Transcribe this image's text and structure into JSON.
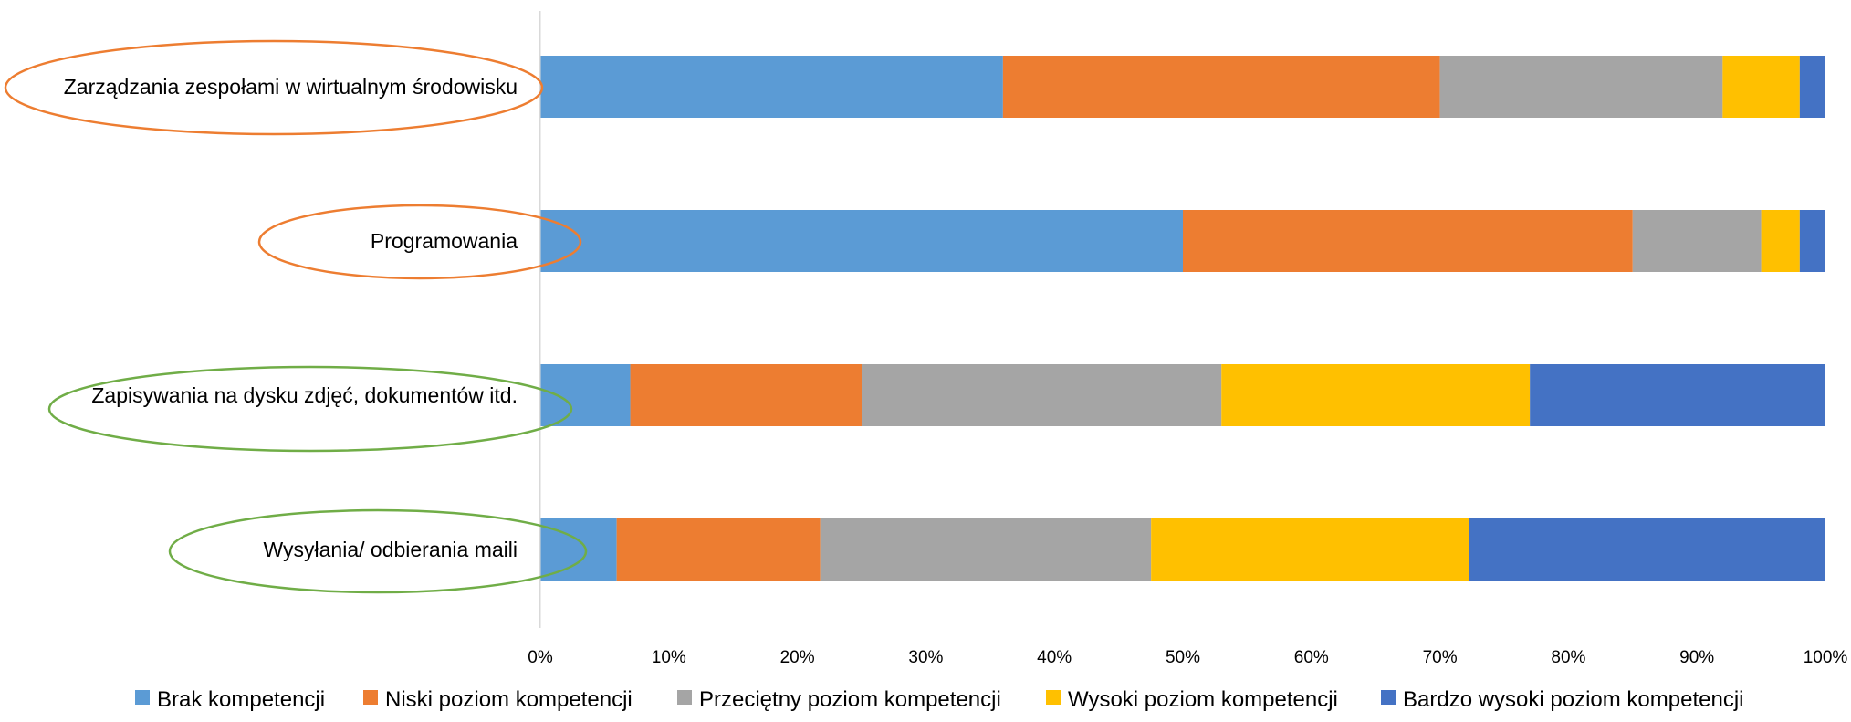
{
  "chart_data": {
    "type": "bar",
    "orientation": "horizontal",
    "stacked": "percent",
    "categories": [
      "Zarządzania zespołami w wirtualnym środowisku",
      "Programowania",
      "Zapisywania na dysku zdjęć, dokumentów itd.",
      "Wysyłania/ odbierania maili"
    ],
    "series": [
      {
        "name": "Brak kompetencji",
        "color": "#5B9BD5",
        "values": [
          36,
          50,
          7,
          6
        ]
      },
      {
        "name": "Niski poziom kompetencji",
        "color": "#ED7D31",
        "values": [
          34,
          35,
          18,
          16
        ]
      },
      {
        "name": "Przeciętny poziom kompetencji",
        "color": "#A5A5A5",
        "values": [
          22,
          10,
          28,
          26
        ]
      },
      {
        "name": "Wysoki poziom kompetencji",
        "color": "#FFC000",
        "values": [
          6,
          3,
          24,
          25
        ]
      },
      {
        "name": "Bardzo wysoki poziom kompetencji",
        "color": "#4472C4",
        "values": [
          2,
          2,
          23,
          28
        ]
      }
    ],
    "xlim": [
      0,
      100
    ],
    "xticks": [
      "0%",
      "10%",
      "20%",
      "30%",
      "40%",
      "50%",
      "60%",
      "70%",
      "80%",
      "90%",
      "100%"
    ],
    "grid": false,
    "legend_position": "bottom",
    "annotations": [
      {
        "type": "ellipse",
        "target": "Zarządzania zespołami w wirtualnym środowisku",
        "color": "#ED7D31"
      },
      {
        "type": "ellipse",
        "target": "Programowania",
        "color": "#ED7D31"
      },
      {
        "type": "ellipse",
        "target": "Zapisywania na dysku zdjęć, dokumentów itd.",
        "color": "#70AD47"
      },
      {
        "type": "ellipse",
        "target": "Wysyłania/ odbierania maili",
        "color": "#70AD47"
      }
    ]
  }
}
